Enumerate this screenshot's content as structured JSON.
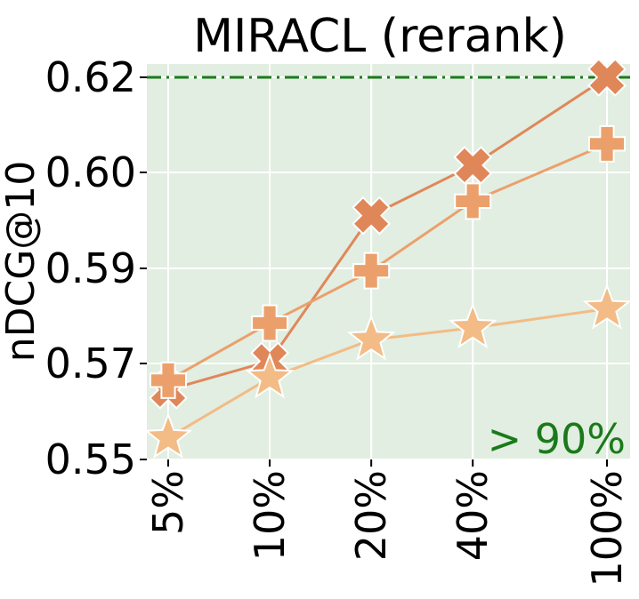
{
  "chart_data": {
    "type": "line",
    "title": "MIRACL (rerank)",
    "xlabel": "",
    "ylabel": "nDCG@10",
    "categories": [
      "5%",
      "10%",
      "20%",
      "40%",
      "100%"
    ],
    "x_positions": [
      5,
      10,
      20,
      40,
      100
    ],
    "x_scale": "log",
    "yticks": [
      "0.55",
      "0.57",
      "0.59",
      "0.60",
      "0.62"
    ],
    "ylim": [
      0.55,
      0.62
    ],
    "grid": true,
    "background_color": "#e1eee1",
    "reference_line": {
      "value": 0.62,
      "color": "#1a7a1a",
      "style": "dash-dot"
    },
    "annotation": {
      "text": "> 90%",
      "color": "#1a7a1a"
    },
    "series": [
      {
        "marker": "x",
        "color": "#e0875a",
        "values": [
          0.5645,
          0.5705,
          0.5955,
          0.6015,
          0.62
        ]
      },
      {
        "marker": "plus",
        "color": "#eba06c",
        "values": [
          0.5665,
          0.5785,
          0.5895,
          0.597,
          0.606
        ]
      },
      {
        "marker": "star",
        "color": "#f3bb86",
        "values": [
          0.5545,
          0.567,
          0.575,
          0.5775,
          0.5815
        ]
      }
    ]
  }
}
